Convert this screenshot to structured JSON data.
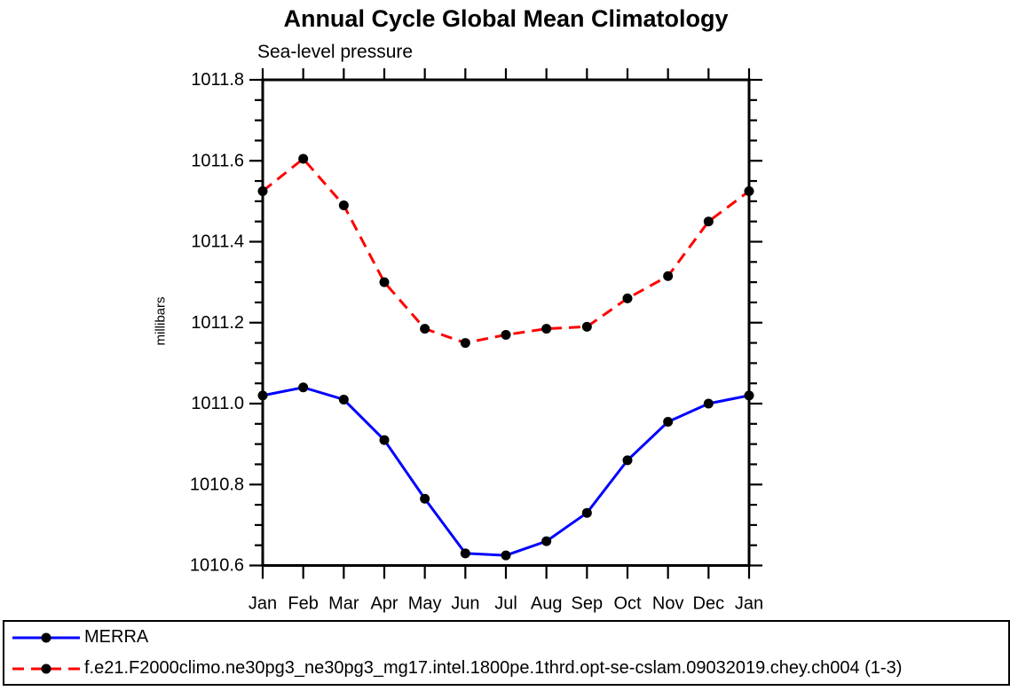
{
  "chart_data": {
    "type": "line",
    "title": "Annual Cycle Global Mean Climatology",
    "subtitle": "Sea-level pressure",
    "ylabel": "millibars",
    "xlabel": "",
    "x_categories": [
      "Jan",
      "Feb",
      "Mar",
      "Apr",
      "May",
      "Jun",
      "Jul",
      "Aug",
      "Sep",
      "Oct",
      "Nov",
      "Dec",
      "Jan"
    ],
    "ylim": [
      1010.6,
      1011.8
    ],
    "ytick_major_step": 0.2,
    "ytick_minor_step": 0.05,
    "ytick_labels": [
      "1011.8",
      "1011.6",
      "1011.4",
      "1011.2",
      "1011.0",
      "1010.8",
      "1010.6"
    ],
    "grid": false,
    "legend_position": "bottom-left-box",
    "frame_color": "#000000",
    "series": [
      {
        "name": "MERRA",
        "color": "#0000ff",
        "style": "solid",
        "marker": "circle",
        "marker_color": "#000000",
        "values": [
          1011.02,
          1011.04,
          1011.01,
          1010.91,
          1010.765,
          1010.63,
          1010.625,
          1010.66,
          1010.73,
          1010.86,
          1010.955,
          1011.0,
          1011.02
        ]
      },
      {
        "name": "f.e21.F2000climo.ne30pg3_ne30pg3_mg17.intel.1800pe.1thrd.opt-se-cslam.09032019.chey.ch004 (1-3)",
        "color": "#ff0000",
        "style": "dashed",
        "marker": "circle",
        "marker_color": "#000000",
        "values": [
          1011.525,
          1011.605,
          1011.49,
          1011.3,
          1011.185,
          1011.15,
          1011.17,
          1011.185,
          1011.19,
          1011.26,
          1011.315,
          1011.45,
          1011.525
        ]
      }
    ]
  }
}
